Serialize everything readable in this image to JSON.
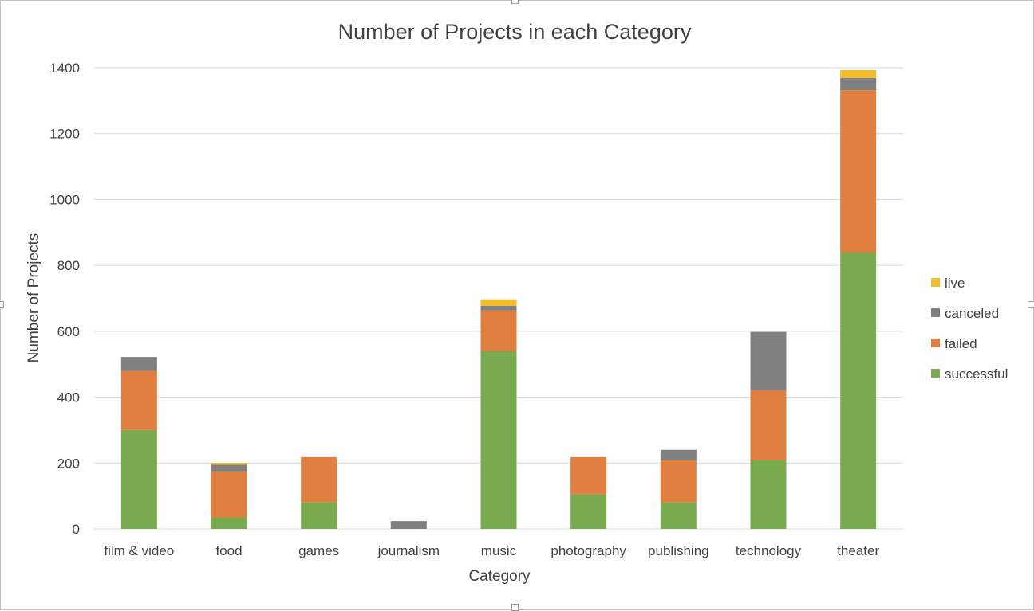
{
  "chart_data": {
    "type": "bar",
    "stacked": true,
    "title": "Number of Projects in each Category",
    "xlabel": "Category",
    "ylabel": "Number of Projects",
    "ylim": [
      0,
      1400
    ],
    "yticks": [
      0,
      200,
      400,
      600,
      800,
      1000,
      1200,
      1400
    ],
    "grid": true,
    "legend_position": "right",
    "categories": [
      "film & video",
      "food",
      "games",
      "journalism",
      "music",
      "photography",
      "publishing",
      "technology",
      "theater"
    ],
    "series": [
      {
        "name": "successful",
        "color": "#7aab50",
        "values": [
          300,
          35,
          80,
          0,
          540,
          105,
          80,
          208,
          839
        ]
      },
      {
        "name": "failed",
        "color": "#e07f3f",
        "values": [
          180,
          140,
          138,
          0,
          123,
          113,
          128,
          213,
          493
        ]
      },
      {
        "name": "canceled",
        "color": "#808080",
        "values": [
          42,
          20,
          0,
          24,
          14,
          0,
          32,
          177,
          37
        ]
      },
      {
        "name": "live",
        "color": "#f3bb2e",
        "values": [
          0,
          5,
          0,
          0,
          20,
          0,
          0,
          0,
          24
        ]
      }
    ]
  }
}
